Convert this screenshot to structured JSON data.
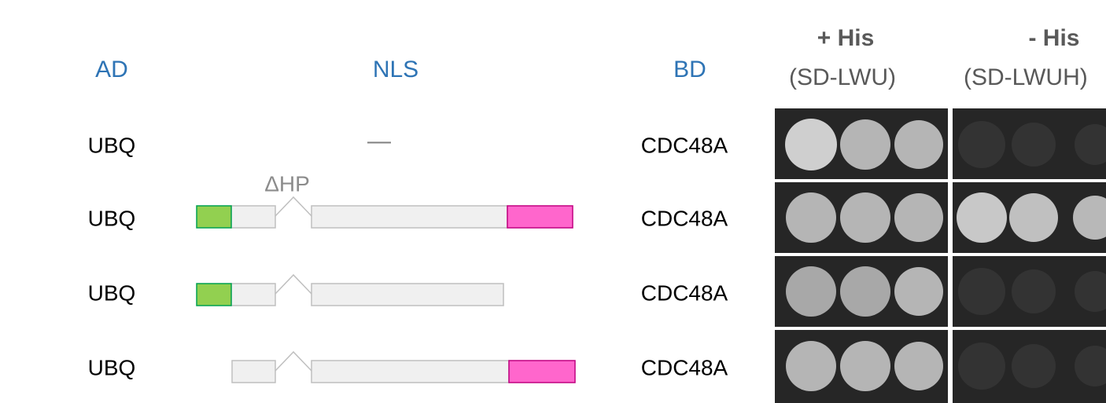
{
  "headers": {
    "ad": "AD",
    "nls": "NLS",
    "bd": "BD",
    "plus_his": {
      "title": "+ His",
      "medium": "(SD-LWU)"
    },
    "minus_his": {
      "title": "- His",
      "medium": "(SD-LWUH)"
    }
  },
  "deletion_label": "ΔHP",
  "rows": [
    {
      "ad": "UBQ",
      "nls": "—",
      "bd": "CDC48A"
    },
    {
      "ad": "UBQ",
      "bd": "CDC48A"
    },
    {
      "ad": "UBQ",
      "bd": "CDC48A"
    },
    {
      "ad": "UBQ",
      "bd": "CDC48A"
    }
  ]
}
